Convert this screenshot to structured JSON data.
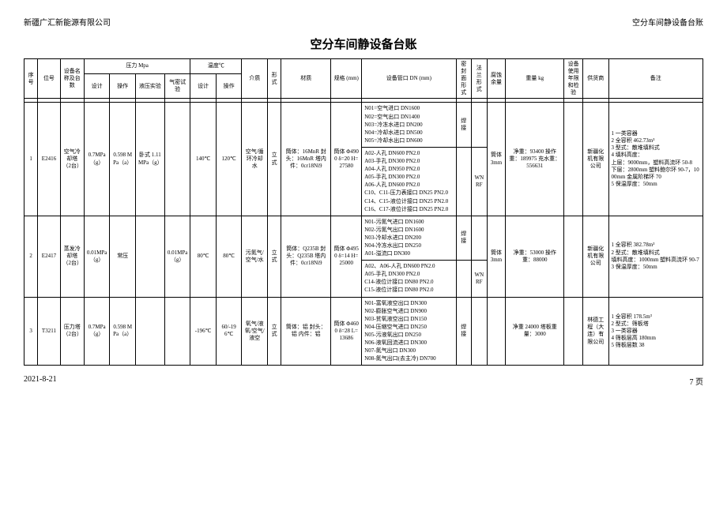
{
  "header": {
    "company": "新疆广汇新能源有限公司",
    "doc": "空分车间静设备台账"
  },
  "title": "空分车间静设备台账",
  "columns": {
    "seq": "序号",
    "pos": "位号",
    "name": "设备名称及台数",
    "pressure": "压力 Mpa",
    "p_design": "设计",
    "p_oper": "操作",
    "p_hydro": "液压实验",
    "p_air": "气密试验",
    "temp": "温度℃",
    "t_design": "设计",
    "t_oper": "操作",
    "medium": "介质",
    "form": "形式",
    "material": "材质",
    "spec": "规格 (mm)",
    "nozzle": "设备管口 DN (mm)",
    "seal": "密封面形式",
    "flange": "法兰形式",
    "corr": "腐蚀余量",
    "weight": "重量 kg",
    "life": "设备使用年限和检验",
    "supplier": "供货商",
    "remark": "备注"
  },
  "rows": [
    {
      "seq": "1",
      "pos": "E2416",
      "name": "空气冷却塔（2台）",
      "p_design": "0.7MPa（g）",
      "p_oper": "0.598 MPa（a）",
      "p_hydro": "卧式 1.11MPa（g）",
      "p_air": "",
      "t_design": "140℃",
      "t_oper": "120℃",
      "medium": "空气/循环冷却水",
      "form": "立式",
      "material": "筒体：16MnR 封头：16MnR 塔内件：0cr18Ni9",
      "spec": "筒体 Φ4900 δ=20 H=27580",
      "nozzles1": [
        "N01=空气进口 DN1600",
        "N02=空气出口 DN1400",
        "N03=冷冻水进口 DN200",
        "N04=冷却水进口 DN500",
        "N05=冷却水出口 DN600"
      ],
      "nozzles2": [
        "A02-人孔 DN600 PN2.0",
        "A03-手孔 DN300 PN2.0",
        "A04-人孔 DN950 PN2.0",
        "A05-手孔 DN300 PN2.0",
        "A06-人孔 DN600 PN2.0",
        "C10、C11-压力表接口 DN25 PN2.0",
        "C14、C15-液位计接口 DN25 PN2.0",
        "C16、C17-液位计接口 DN25 PN2.0"
      ],
      "seal1": "焊接",
      "seal2": "",
      "flange2": "WN RF",
      "corr": "筒体 3mm",
      "weight": "净重：93400 操作重：189975 充水重：556631",
      "supplier": "新疆化机有限公司",
      "remark": [
        "1 一类容器",
        "2 全容积 462.73m³",
        "3 型式：散堆填料式",
        "4 填料高度：",
        "上层：9000mm，塑料高流环 50-8",
        "下层：2800mm 塑料鲍尔环 90-7，1000mm 金属阶梯环 70",
        "5 保温厚度：50mm"
      ]
    },
    {
      "seq": "2",
      "pos": "E2417",
      "name": "蒸发冷却塔（2台）",
      "p_design": "0.01MPa（g）",
      "p_oper": "常压",
      "p_hydro": "",
      "p_air": "0.01MPa（g）",
      "t_design": "80℃",
      "t_oper": "80℃",
      "medium": "污氮气/空气/水",
      "form": "立式",
      "material": "筒体：Q235B 封头：Q235B 塔内件：0cr18Ni9",
      "spec": "筒体 Φ4950 δ=14 H=25000",
      "nozzles1": [
        "N01-污氮气进口 DN1600",
        "N02-污氮气出口 DN1600",
        "N03-冷却水进口 DN200",
        "N04-冷冻水出口 DN250",
        "A01-溢流口 DN300"
      ],
      "nozzles2": [
        "A02、A06-人孔 DN600 PN2.0",
        "A05-手孔 DN300 PN2.0",
        "C14-液位计接口 DN80 PN2.0",
        "C15-液位计接口 DN80 PN2.0"
      ],
      "seal1": "焊接",
      "seal2": "",
      "flange2": "WN RF",
      "corr": "筒体 3mm",
      "weight": "净重：53000 操作重：88000",
      "supplier": "新疆化机有限公司",
      "remark": [
        "1 全容积 382.78m³",
        "2 型式：散堆填料式",
        "填料高度：1000mm 塑料高流环 90-7",
        "3 保温厚度：50mm"
      ]
    },
    {
      "seq": "3",
      "pos": "T3211",
      "name": "压力塔（2台）",
      "p_design": "0.7MPa（g）",
      "p_oper": "0.598 MPa（a）",
      "p_hydro": "",
      "p_air": "",
      "t_design": "-196℃",
      "t_oper": "60/-196℃",
      "medium": "氧气/液氧/空气/液空",
      "form": "立式",
      "material": "筒体：铝 封头：铝 内件：铝",
      "spec": "筒体 Φ4600 δ=28 L=13686",
      "nozzles1": [
        "N01-富氧液空出口 DN300",
        "N02-膨胀空气进口 DN900",
        "N03-贫氧液空出口 DN150",
        "N04-压缩空气进口 DN250",
        "N05-污液氧出口 DN250",
        "N06-液氧回流进口 DN300",
        "N07-氮气出口 DN300",
        "N08-氮气出口(去主冷) DN700"
      ],
      "seal1": "焊接",
      "weight": "净重 24000 塔板重量：3000",
      "supplier": "林德工程（大连）有限公司",
      "remark": [
        "1 全容积 178.5m³",
        "2 型式：筛板塔",
        "3 一类容器",
        "4 筛板层高 180mm",
        "5 筛板层数 38"
      ]
    }
  ],
  "footer": {
    "date": "2021-8-21",
    "page": "7 页"
  }
}
